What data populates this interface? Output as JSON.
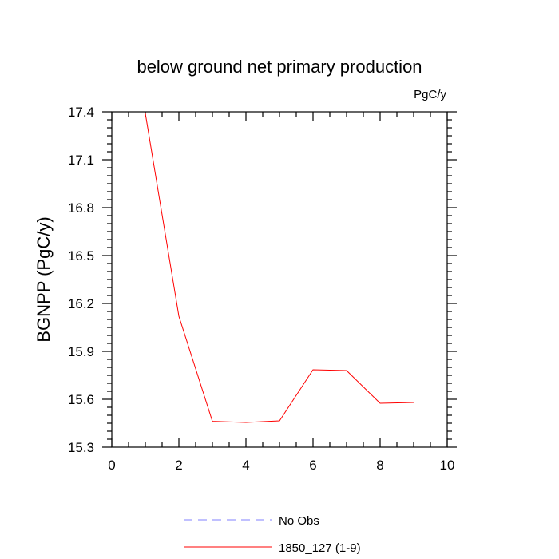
{
  "chart_data": {
    "type": "line",
    "title": "below ground net primary production",
    "units_label": "PgC/y",
    "ylabel": "BGNPP  (PgC/y)",
    "xlabel": "",
    "xlim": [
      0,
      10
    ],
    "ylim": [
      15.3,
      17.4
    ],
    "x_ticks": [
      "0",
      "2",
      "4",
      "6",
      "8",
      "10"
    ],
    "y_ticks": [
      "15.3",
      "15.6",
      "15.9",
      "16.2",
      "16.5",
      "16.8",
      "17.1",
      "17.4"
    ],
    "x_tick_values": [
      0,
      2,
      4,
      6,
      8,
      10
    ],
    "y_tick_values": [
      15.3,
      15.6,
      15.9,
      16.2,
      16.5,
      16.8,
      17.1,
      17.4
    ],
    "grid": false,
    "legend_position": "bottom",
    "series": [
      {
        "name": "1850_127 (1-9)",
        "color": "#ff0000",
        "style": "solid",
        "x": [
          1,
          2,
          3,
          4,
          5,
          6,
          7,
          8,
          9
        ],
        "y": [
          17.39,
          16.12,
          15.462,
          15.455,
          15.465,
          15.785,
          15.78,
          15.575,
          15.58
        ]
      }
    ],
    "legend": [
      {
        "label": "No Obs",
        "color": "#8080ff",
        "style": "dashed"
      },
      {
        "label": "1850_127 (1-9)",
        "color": "#ff0000",
        "style": "solid"
      }
    ]
  }
}
